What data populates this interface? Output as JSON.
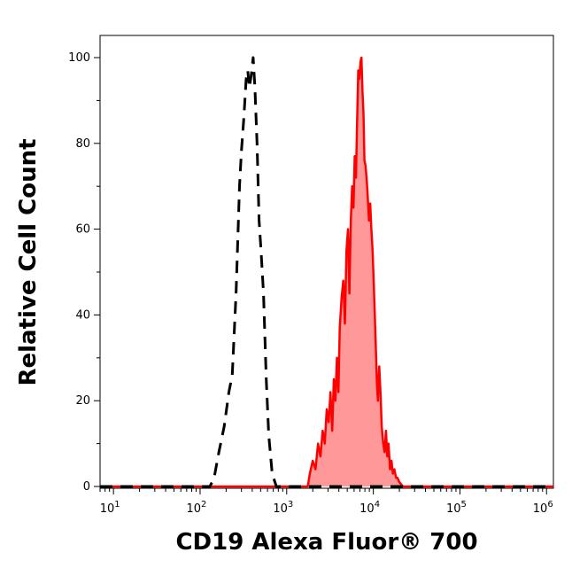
{
  "chart_data": {
    "type": "area",
    "xlabel": "CD19 Alexa Fluor® 700",
    "ylabel": "Relative Cell Count",
    "x_scale": "log",
    "xlim": [
      7,
      1200000
    ],
    "ylim": [
      0,
      105
    ],
    "x_ticks": [
      {
        "value": 10,
        "base": "10",
        "exp": "1"
      },
      {
        "value": 100,
        "base": "10",
        "exp": "2"
      },
      {
        "value": 1000,
        "base": "10",
        "exp": "3"
      },
      {
        "value": 10000,
        "base": "10",
        "exp": "4"
      },
      {
        "value": 100000,
        "base": "10",
        "exp": "5"
      },
      {
        "value": 1000000,
        "base": "10",
        "exp": "6"
      }
    ],
    "y_ticks": [
      0,
      20,
      40,
      60,
      80,
      100
    ],
    "grid": false,
    "legend": "none",
    "series": [
      {
        "style": "dashed",
        "color": "#000000",
        "fill": "none",
        "points": [
          [
            7,
            0
          ],
          [
            90,
            0
          ],
          [
            130,
            0
          ],
          [
            145,
            2
          ],
          [
            165,
            8
          ],
          [
            190,
            14
          ],
          [
            215,
            22
          ],
          [
            235,
            26
          ],
          [
            260,
            45
          ],
          [
            285,
            70
          ],
          [
            300,
            78
          ],
          [
            320,
            86
          ],
          [
            340,
            95
          ],
          [
            355,
            97
          ],
          [
            370,
            93
          ],
          [
            390,
            96
          ],
          [
            410,
            100
          ],
          [
            430,
            93
          ],
          [
            455,
            80
          ],
          [
            480,
            62
          ],
          [
            505,
            55
          ],
          [
            540,
            45
          ],
          [
            580,
            25
          ],
          [
            620,
            12
          ],
          [
            680,
            3
          ],
          [
            760,
            0
          ],
          [
            900,
            0
          ],
          [
            1200000,
            0
          ]
        ]
      },
      {
        "style": "solid",
        "color": "#ff0000",
        "fill": "#ff9999",
        "points": [
          [
            7,
            0
          ],
          [
            1500,
            0
          ],
          [
            1750,
            0
          ],
          [
            1850,
            3
          ],
          [
            2000,
            6
          ],
          [
            2150,
            4
          ],
          [
            2300,
            10
          ],
          [
            2450,
            7
          ],
          [
            2600,
            13
          ],
          [
            2750,
            10
          ],
          [
            2900,
            18
          ],
          [
            3050,
            15
          ],
          [
            3200,
            22
          ],
          [
            3350,
            13
          ],
          [
            3500,
            25
          ],
          [
            3650,
            20
          ],
          [
            3800,
            30
          ],
          [
            3950,
            22
          ],
          [
            4100,
            37
          ],
          [
            4300,
            44
          ],
          [
            4500,
            48
          ],
          [
            4700,
            38
          ],
          [
            4900,
            55
          ],
          [
            5100,
            60
          ],
          [
            5300,
            45
          ],
          [
            5500,
            62
          ],
          [
            5700,
            70
          ],
          [
            5900,
            65
          ],
          [
            6100,
            77
          ],
          [
            6300,
            72
          ],
          [
            6500,
            85
          ],
          [
            6700,
            97
          ],
          [
            6900,
            95
          ],
          [
            7100,
            99
          ],
          [
            7300,
            100
          ],
          [
            7500,
            92
          ],
          [
            7700,
            87
          ],
          [
            7900,
            76
          ],
          [
            8100,
            75
          ],
          [
            8350,
            72
          ],
          [
            8600,
            68
          ],
          [
            8900,
            62
          ],
          [
            9200,
            66
          ],
          [
            9500,
            60
          ],
          [
            9800,
            55
          ],
          [
            10100,
            48
          ],
          [
            10400,
            40
          ],
          [
            10700,
            32
          ],
          [
            11000,
            24
          ],
          [
            11300,
            20
          ],
          [
            11700,
            28
          ],
          [
            12100,
            22
          ],
          [
            12500,
            14
          ],
          [
            13000,
            10
          ],
          [
            13500,
            8
          ],
          [
            14000,
            13
          ],
          [
            14500,
            7
          ],
          [
            15000,
            10
          ],
          [
            15600,
            4
          ],
          [
            16200,
            6
          ],
          [
            16800,
            3
          ],
          [
            17500,
            4
          ],
          [
            18300,
            2
          ],
          [
            19000,
            2
          ],
          [
            20000,
            1
          ],
          [
            22000,
            0
          ],
          [
            1200000,
            0
          ]
        ]
      }
    ]
  }
}
